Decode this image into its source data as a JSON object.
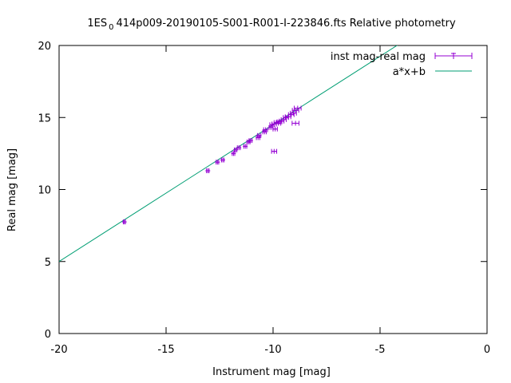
{
  "chart_data": {
    "type": "scatter",
    "title_parts": {
      "prefix": "1ES",
      "subscript": "0",
      "suffix": "414p009-20190105-S001-R001-I-223846.fts Relative photometry"
    },
    "xlabel": "Instrument mag [mag]",
    "ylabel": "Real mag [mag]",
    "xlim": [
      -20,
      0
    ],
    "ylim": [
      0,
      20
    ],
    "xticks": [
      -20,
      -15,
      -10,
      -5,
      0
    ],
    "yticks": [
      0,
      5,
      10,
      15,
      20
    ],
    "grid": false,
    "legend_position": "top-right",
    "series": [
      {
        "name": "inst mag-real mag",
        "kind": "points_with_xerror",
        "color": "#9400d3",
        "points": [
          {
            "x": -16.95,
            "y": 7.75,
            "xerr": 0.05
          },
          {
            "x": -13.05,
            "y": 11.3,
            "xerr": 0.06
          },
          {
            "x": -12.6,
            "y": 11.9,
            "xerr": 0.06
          },
          {
            "x": -12.35,
            "y": 12.05,
            "xerr": 0.06
          },
          {
            "x": -11.85,
            "y": 12.5,
            "xerr": 0.06
          },
          {
            "x": -11.75,
            "y": 12.75,
            "xerr": 0.06
          },
          {
            "x": -11.6,
            "y": 12.9,
            "xerr": 0.07
          },
          {
            "x": -11.3,
            "y": 13.0,
            "xerr": 0.07
          },
          {
            "x": -11.15,
            "y": 13.3,
            "xerr": 0.07
          },
          {
            "x": -11.05,
            "y": 13.4,
            "xerr": 0.07
          },
          {
            "x": -10.7,
            "y": 13.6,
            "xerr": 0.08
          },
          {
            "x": -10.65,
            "y": 13.75,
            "xerr": 0.08
          },
          {
            "x": -10.4,
            "y": 14.0,
            "xerr": 0.08
          },
          {
            "x": -10.35,
            "y": 14.15,
            "xerr": 0.09
          },
          {
            "x": -10.1,
            "y": 14.3,
            "xerr": 0.09
          },
          {
            "x": -10.05,
            "y": 14.5,
            "xerr": 0.1
          },
          {
            "x": -9.95,
            "y": 14.55,
            "xerr": 0.1
          },
          {
            "x": -9.9,
            "y": 14.2,
            "xerr": 0.1
          },
          {
            "x": -9.85,
            "y": 14.65,
            "xerr": 0.1
          },
          {
            "x": -9.75,
            "y": 14.6,
            "xerr": 0.11
          },
          {
            "x": -9.7,
            "y": 14.7,
            "xerr": 0.11
          },
          {
            "x": -9.6,
            "y": 14.75,
            "xerr": 0.11
          },
          {
            "x": -9.5,
            "y": 14.85,
            "xerr": 0.12
          },
          {
            "x": -9.4,
            "y": 15.0,
            "xerr": 0.12
          },
          {
            "x": -9.3,
            "y": 15.05,
            "xerr": 0.13
          },
          {
            "x": -9.15,
            "y": 15.2,
            "xerr": 0.13
          },
          {
            "x": -9.05,
            "y": 15.3,
            "xerr": 0.14
          },
          {
            "x": -8.95,
            "y": 15.5,
            "xerr": 0.15
          },
          {
            "x": -8.85,
            "y": 15.65,
            "xerr": 0.16
          },
          {
            "x": -8.95,
            "y": 14.6,
            "xerr": 0.16
          },
          {
            "x": -9.95,
            "y": 12.65,
            "xerr": 0.12
          }
        ]
      },
      {
        "name": "a*x+b",
        "kind": "line",
        "color": "#009e73",
        "x": [
          -20,
          -18,
          -16,
          -14,
          -12,
          -10,
          -8,
          -6,
          -4
        ],
        "y": [
          5.0,
          6.9,
          8.8,
          10.7,
          12.6,
          14.5,
          16.4,
          18.3,
          20.2
        ]
      }
    ]
  }
}
